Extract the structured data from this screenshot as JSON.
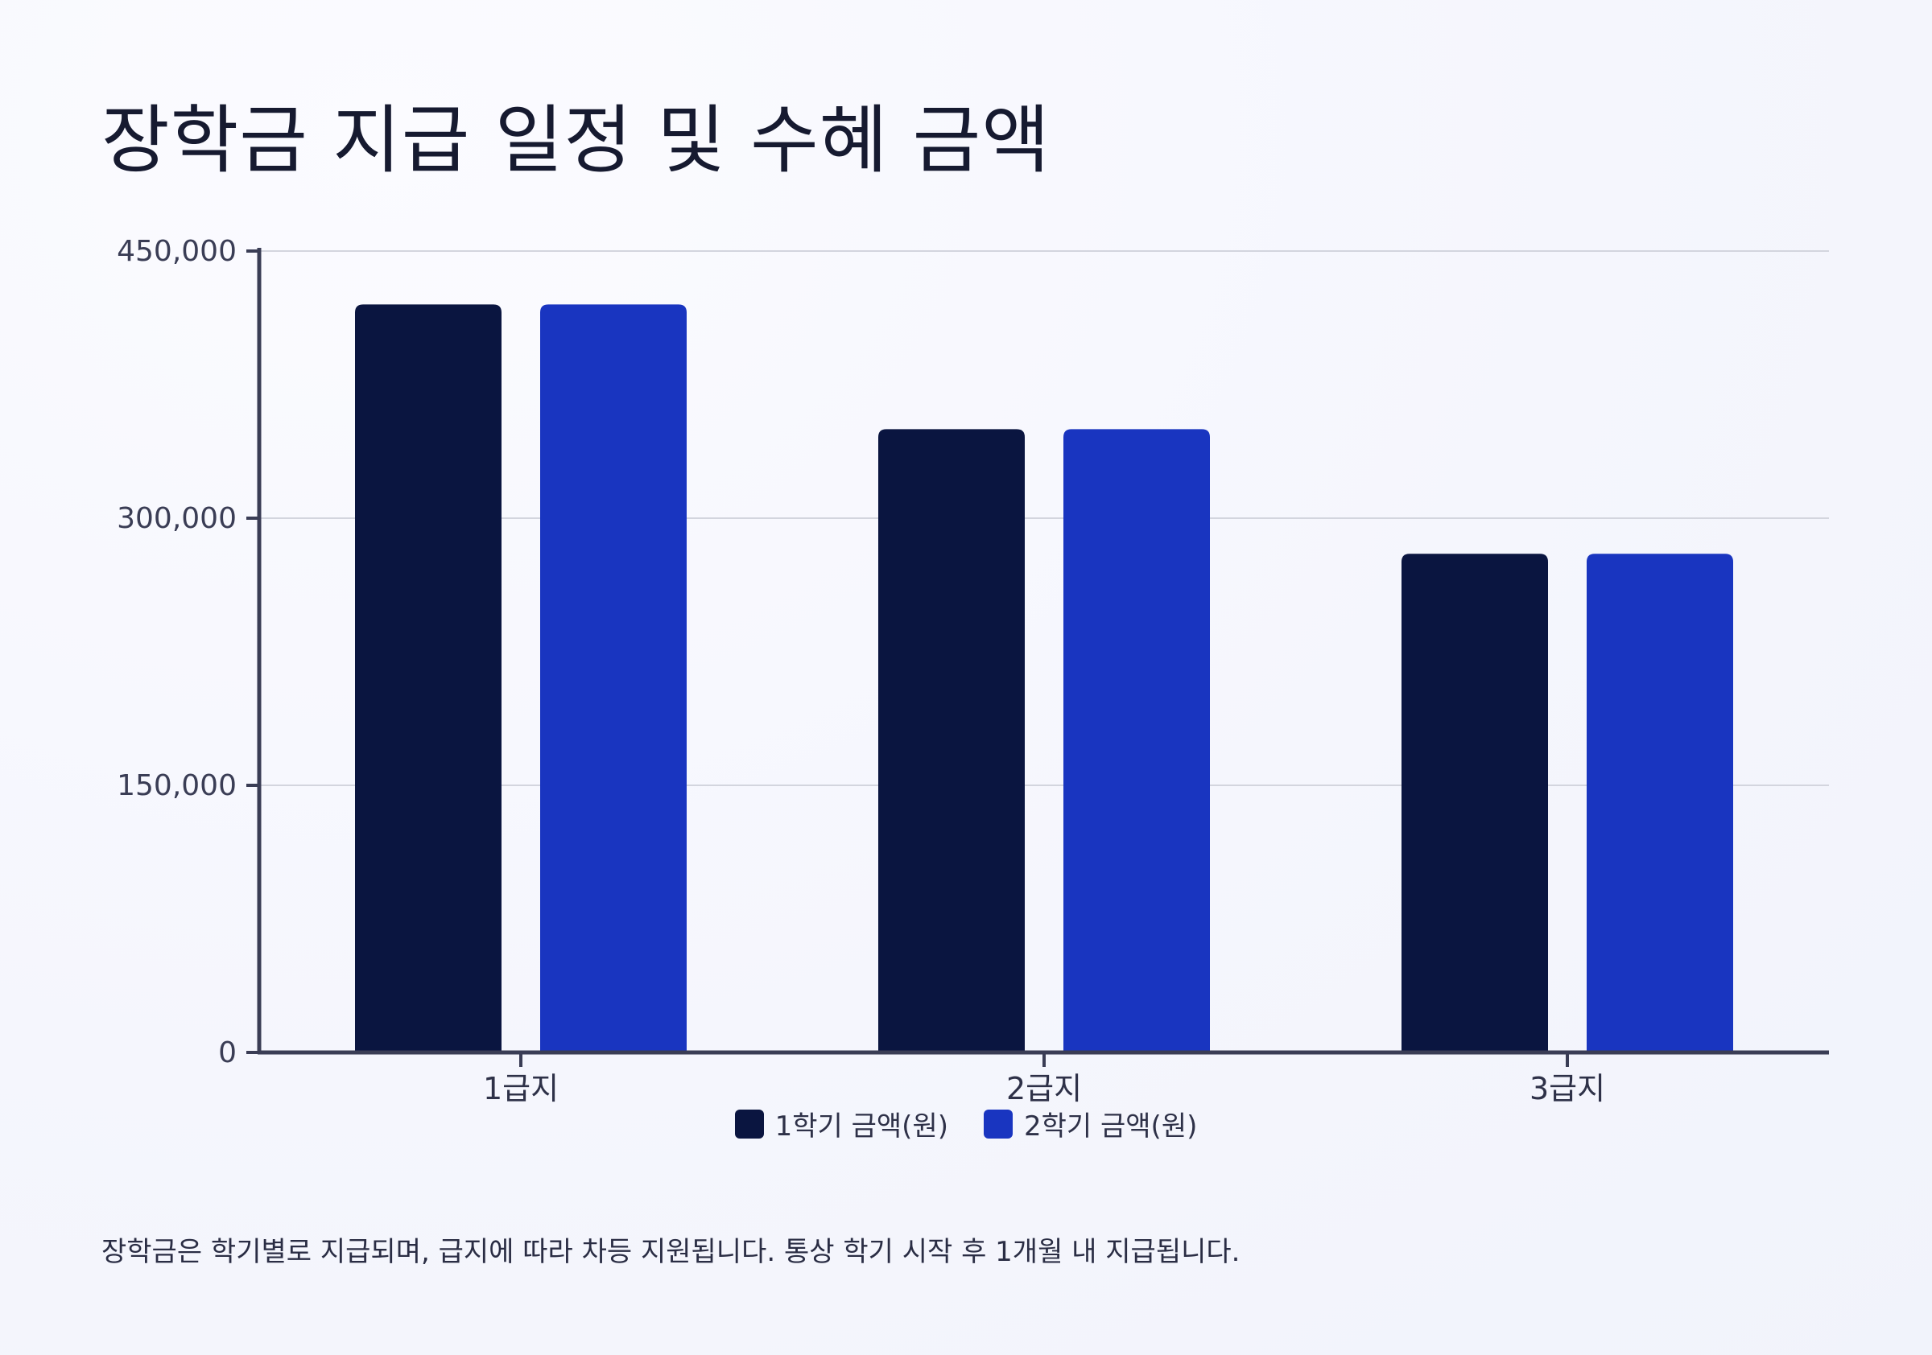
{
  "title": "장학금 지급 일정 및 수혜 금액",
  "footnote": "장학금은 학기별로 지급되며, 급지에 따라 차등 지원됩니다. 통상 학기 시작 후 1개월 내 지급됩니다.",
  "chart_data": {
    "type": "bar",
    "categories": [
      "1급지",
      "2급지",
      "3급지"
    ],
    "series": [
      {
        "name": "1학기 금액(원)",
        "values": [
          420000,
          350000,
          280000
        ],
        "color": "#0a1540"
      },
      {
        "name": "2학기 금액(원)",
        "values": [
          420000,
          350000,
          280000
        ],
        "color": "#1935c0"
      }
    ],
    "yticks": [
      0,
      150000,
      300000,
      450000
    ],
    "ytick_labels": [
      "0",
      "150,000",
      "300,000",
      "450,000"
    ],
    "ylim": [
      0,
      450000
    ],
    "grid": true,
    "legend_position": "bottom-center"
  }
}
